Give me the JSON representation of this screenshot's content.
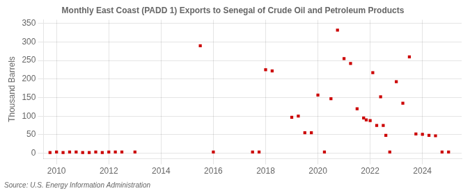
{
  "chart_data": {
    "type": "scatter",
    "title": "Monthly East Coast (PADD 1) Exports to Senegal of Crude Oil and Petroleum Products",
    "ylabel": "Thousand Barrels",
    "annotations": [
      "Source: U.S. Energy Information Administration"
    ],
    "color": "#cc0000",
    "marker": "square",
    "grid": true,
    "xlim": [
      2009.5,
      2025.5
    ],
    "ylim": [
      -15,
      360
    ],
    "xticks": [
      2010,
      2012,
      2014,
      2016,
      2018,
      2020,
      2022,
      2024
    ],
    "yticks": [
      0,
      50,
      100,
      150,
      200,
      250,
      300,
      350
    ],
    "x": [
      2009.75,
      2010.0,
      2010.25,
      2010.5,
      2010.75,
      2011.0,
      2011.25,
      2011.5,
      2011.75,
      2012.0,
      2012.25,
      2012.5,
      2013.0,
      2015.5,
      2016.0,
      2017.5,
      2017.75,
      2018.0,
      2018.25,
      2019.0,
      2019.25,
      2019.5,
      2019.75,
      2020.0,
      2020.25,
      2020.5,
      2020.75,
      2021.0,
      2021.25,
      2021.5,
      2021.75,
      2021.85,
      2022.0,
      2022.1,
      2022.25,
      2022.4,
      2022.5,
      2022.6,
      2022.75,
      2023.0,
      2023.25,
      2023.5,
      2023.75,
      2024.0,
      2024.25,
      2024.5,
      2024.75,
      2025.0
    ],
    "values": [
      2,
      3,
      2,
      3,
      3,
      2,
      2,
      3,
      2,
      3,
      3,
      3,
      3,
      290,
      3,
      3,
      3,
      225,
      222,
      97,
      100,
      55,
      55,
      157,
      3,
      147,
      332,
      255,
      242,
      120,
      95,
      90,
      88,
      217,
      75,
      152,
      75,
      48,
      3,
      193,
      135,
      260,
      52,
      51,
      48,
      47,
      3,
      3
    ]
  }
}
